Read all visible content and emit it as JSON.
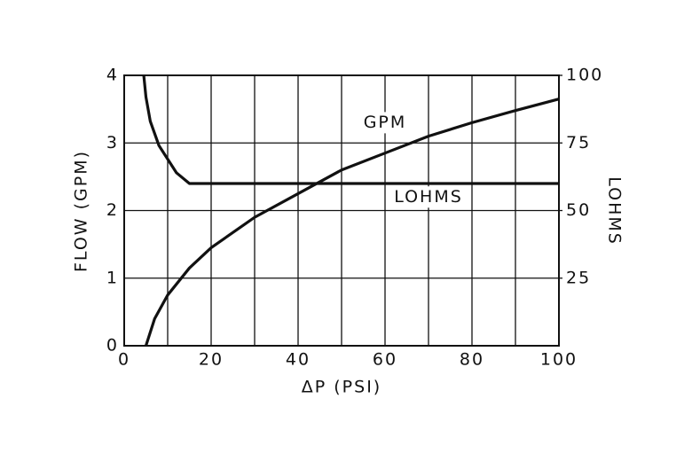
{
  "chart_data": {
    "type": "line",
    "x_label": "ΔP   (PSI)",
    "y_label": "FLOW    (GPM)",
    "y2_label": "LOHMS",
    "xlim": [
      0,
      100
    ],
    "xticks": [
      0,
      20,
      40,
      60,
      80,
      100
    ],
    "xminor_ticks": [
      10,
      30,
      50,
      70,
      90
    ],
    "ylim": [
      0,
      4
    ],
    "yticks": [
      0,
      1,
      2,
      3,
      4
    ],
    "y2lim": [
      0,
      100
    ],
    "y2ticks": [
      25,
      50,
      75,
      100
    ],
    "grid": true,
    "series": [
      {
        "name": "GPM",
        "color": "#111111",
        "x": [
          5,
          7,
          10,
          15,
          20,
          30,
          40,
          50,
          60,
          70,
          80,
          90,
          100
        ],
        "values": [
          0,
          0.4,
          0.75,
          1.15,
          1.45,
          1.9,
          2.25,
          2.6,
          2.85,
          3.1,
          3.3,
          3.48,
          3.65
        ]
      },
      {
        "name": "LOHMS",
        "color": "#111111",
        "axis": "y2",
        "x": [
          4.5,
          5,
          6,
          8,
          10,
          12,
          15,
          100
        ],
        "values": [
          100,
          92,
          83,
          74,
          69,
          64,
          60,
          60
        ]
      }
    ],
    "annotations": [
      {
        "text": "GPM",
        "x": 60,
        "y": 3.3
      },
      {
        "text": "LOHMS",
        "x": 70,
        "y": 2.2
      }
    ]
  }
}
